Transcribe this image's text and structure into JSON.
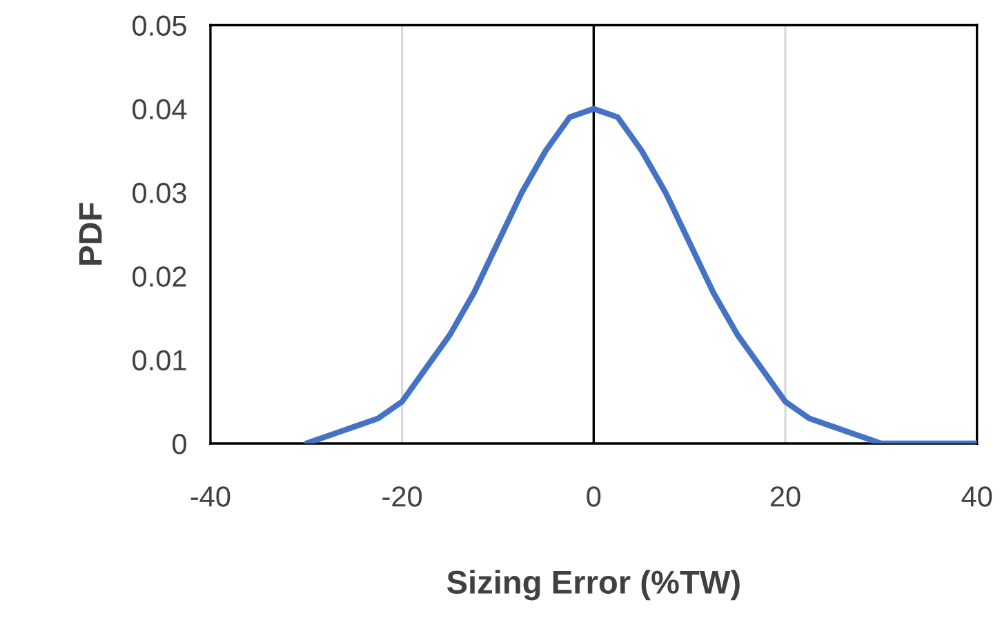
{
  "chart_data": {
    "type": "line",
    "xlabel": "Sizing Error (%TW)",
    "ylabel": "PDF",
    "x": [
      -30,
      -27.5,
      -25,
      -22.5,
      -20,
      -17.5,
      -15,
      -12.5,
      -10,
      -7.5,
      -5,
      -2.5,
      0,
      2.5,
      5,
      7.5,
      10,
      12.5,
      15,
      17.5,
      20,
      22.5,
      25,
      27.5,
      30,
      32.5,
      35,
      37.5,
      40
    ],
    "series": [
      {
        "color": "#4472c4",
        "values": [
          0.0,
          0.001,
          0.002,
          0.003,
          0.005,
          0.009,
          0.013,
          0.018,
          0.024,
          0.03,
          0.035,
          0.039,
          0.04,
          0.039,
          0.035,
          0.03,
          0.024,
          0.018,
          0.013,
          0.009,
          0.005,
          0.003,
          0.002,
          0.001,
          0.0,
          0.0,
          0.0,
          0.0,
          0.0
        ]
      }
    ],
    "xlim": [
      -40,
      40
    ],
    "xticks": [
      -40,
      -20,
      0,
      20,
      40
    ],
    "ylim": [
      0,
      0.05
    ],
    "yticks": [
      0,
      0.01,
      0.02,
      0.03,
      0.04,
      0.05
    ],
    "grid": "x",
    "marker": "none",
    "line_style": "solid",
    "legend": false,
    "ref_lines": [
      {
        "axis": "x",
        "value": 0,
        "color": "#000000"
      }
    ]
  }
}
